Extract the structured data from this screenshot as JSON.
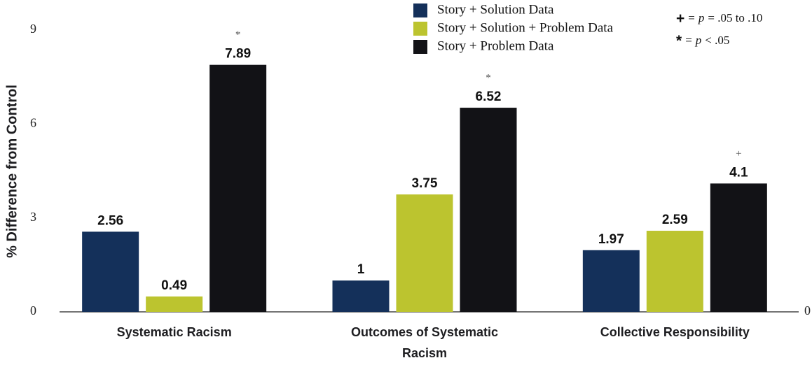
{
  "chart_data": {
    "type": "bar",
    "y_label": "% Difference from Control",
    "categories": [
      "Systematic Racism",
      "Outcomes of Systematic Racism",
      "Collective Responsibility"
    ],
    "series": [
      {
        "name": "Story + Solution Data",
        "color": "#14305a",
        "values": [
          2.56,
          1,
          1.97
        ]
      },
      {
        "name": "Story + Solution + Problem Data",
        "color": "#bcc42f",
        "values": [
          0.49,
          3.75,
          2.59
        ]
      },
      {
        "name": "Story + Problem Data",
        "color": "#121216",
        "values": [
          7.89,
          6.52,
          4.1
        ],
        "markers": [
          "*",
          "*",
          "+"
        ]
      }
    ],
    "ylim": [
      0,
      9
    ],
    "yticks": [
      0,
      3,
      6,
      9
    ],
    "y2lim": [
      0,
      9
    ],
    "y2ticks": [
      0
    ],
    "legend": "top",
    "notes": [
      {
        "symbol": "+",
        "relation": "=",
        "variable": "p",
        "text": "= .05 to .10"
      },
      {
        "symbol": "*",
        "relation": "=",
        "variable": "p",
        "text": "< .05"
      }
    ]
  }
}
